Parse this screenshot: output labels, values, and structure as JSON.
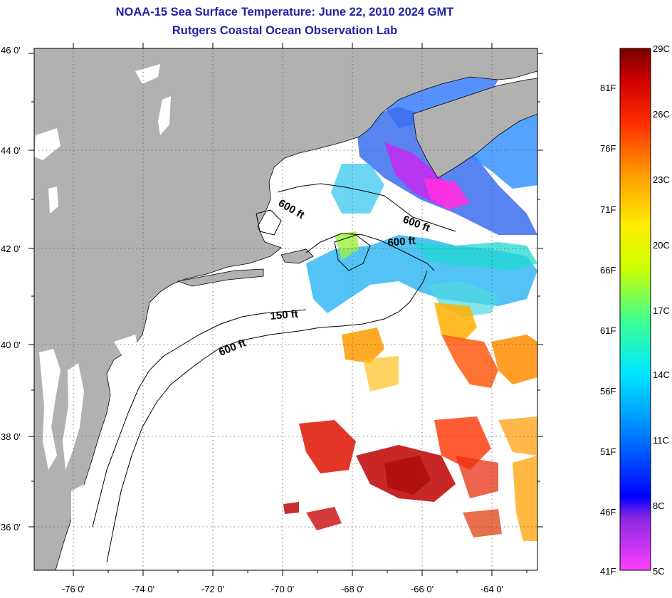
{
  "title": {
    "line1": "NOAA-15 Sea Surface Temperature:  June 22, 2010 2024 GMT",
    "line2": "Rutgers Coastal Ocean Observation Lab"
  },
  "map": {
    "lat_labels": [
      "46 0'",
      "44 0'",
      "42 0'",
      "40 0'",
      "38 0'",
      "36 0'"
    ],
    "lon_labels": [
      "-76 0'",
      "-74 0'",
      "-72 0'",
      "-70 0'",
      "-68 0'",
      "-66 0'",
      "-64 0'"
    ],
    "contour_labels": [
      "600 ft",
      "600 ft",
      "600 ft",
      "150 ft",
      "600 ft"
    ],
    "land_color": "#b1b1b1",
    "ocean_color": "#ffffff"
  },
  "colorbar": {
    "fahrenheit_labels": [
      "81F",
      "76F",
      "71F",
      "66F",
      "61F",
      "56F",
      "51F",
      "46F",
      "41F"
    ],
    "celsius_labels": [
      "29C",
      "26C",
      "23C",
      "20C",
      "17C",
      "14C",
      "11C",
      "8C",
      "5C"
    ]
  }
}
